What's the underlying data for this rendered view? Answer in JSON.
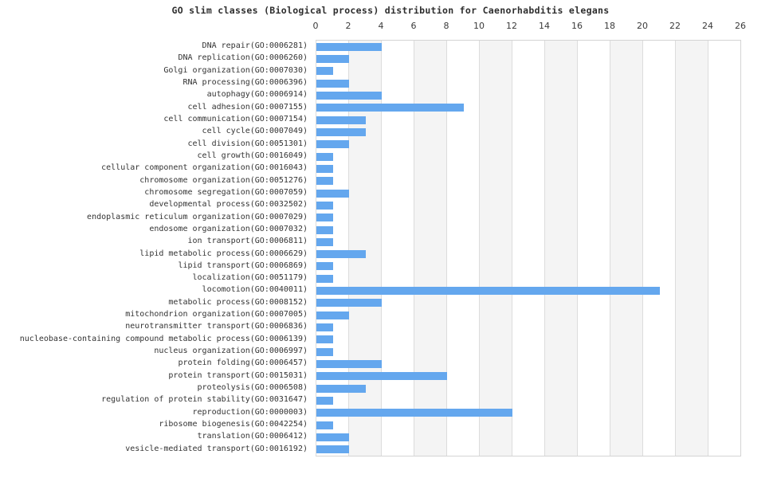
{
  "title": "GO slim classes (Biological process) distribution for Caenorhabditis elegans",
  "colors": {
    "bar": "#64a7ee",
    "band": "#f4f4f4",
    "gridline": "#dcdcdc",
    "border": "#d4d4d4",
    "title_text": "#2e2e2e",
    "label_text": "#333333",
    "tick_text": "#3a3a3a"
  },
  "chart_data": {
    "type": "bar",
    "orientation": "horizontal",
    "title": "GO slim classes (Biological process) distribution for Caenorhabditis elegans",
    "xlabel": "",
    "ylabel": "",
    "xlim": [
      0,
      26
    ],
    "xticks": [
      0,
      2,
      4,
      6,
      8,
      10,
      12,
      14,
      16,
      18,
      20,
      22,
      24,
      26
    ],
    "grid": true,
    "legend": "none",
    "categories": [
      "DNA repair(GO:0006281)",
      "DNA replication(GO:0006260)",
      "Golgi organization(GO:0007030)",
      "RNA processing(GO:0006396)",
      "autophagy(GO:0006914)",
      "cell adhesion(GO:0007155)",
      "cell communication(GO:0007154)",
      "cell cycle(GO:0007049)",
      "cell division(GO:0051301)",
      "cell growth(GO:0016049)",
      "cellular component organization(GO:0016043)",
      "chromosome organization(GO:0051276)",
      "chromosome segregation(GO:0007059)",
      "developmental process(GO:0032502)",
      "endoplasmic reticulum organization(GO:0007029)",
      "endosome organization(GO:0007032)",
      "ion transport(GO:0006811)",
      "lipid metabolic process(GO:0006629)",
      "lipid transport(GO:0006869)",
      "localization(GO:0051179)",
      "locomotion(GO:0040011)",
      "metabolic process(GO:0008152)",
      "mitochondrion organization(GO:0007005)",
      "neurotransmitter transport(GO:0006836)",
      "nucleobase-containing compound metabolic process(GO:0006139)",
      "nucleus organization(GO:0006997)",
      "protein folding(GO:0006457)",
      "protein transport(GO:0015031)",
      "proteolysis(GO:0006508)",
      "regulation of protein stability(GO:0031647)",
      "reproduction(GO:0000003)",
      "ribosome biogenesis(GO:0042254)",
      "translation(GO:0006412)",
      "vesicle-mediated transport(GO:0016192)"
    ],
    "values": [
      4,
      2,
      1,
      2,
      4,
      9,
      3,
      3,
      2,
      1,
      1,
      1,
      2,
      1,
      1,
      1,
      1,
      3,
      1,
      1,
      21,
      4,
      2,
      1,
      1,
      1,
      4,
      8,
      3,
      1,
      12,
      1,
      2,
      2
    ]
  }
}
